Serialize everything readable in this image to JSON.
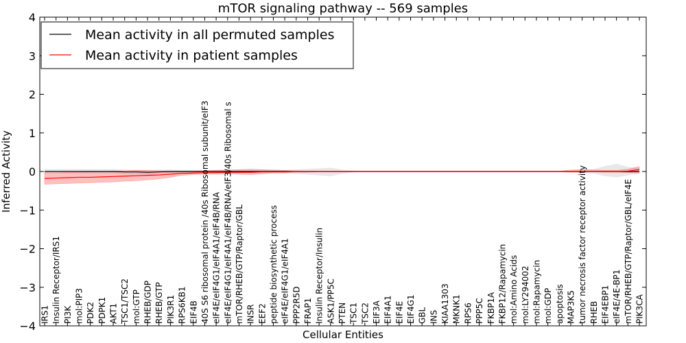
{
  "chart_data": {
    "type": "line",
    "title": "mTOR signaling pathway -- 569 samples",
    "xlabel": "Cellular Entities",
    "ylabel": "Inferred Activity",
    "ylim": [
      -4,
      4
    ],
    "yticks": [
      -4,
      -3,
      -2,
      -1,
      0,
      1,
      2,
      3,
      4
    ],
    "ytick_labels": [
      "−4",
      "−3",
      "−2",
      "−1",
      "0",
      "1",
      "2",
      "3",
      "4"
    ],
    "grid": false,
    "legend_position": "top-left",
    "categories": [
      "IRS1",
      "Insulin Receptor/IRS1",
      "PI3K",
      "mol:PIP3",
      "PDK2",
      "PDPK1",
      "AKT1",
      "TSC1/TSC2",
      "mol:GTP",
      "RHEB/GDP",
      "RHEB/GTP",
      "PIK3R1",
      "RPS6KB1",
      "EIF4B",
      "40S S6 ribosomal protein /40s Ribosomal subunit/eIF3",
      "eIF4E/eIF4G1/eIF4A1/eIF4B/RNA",
      "eIF4E/eIF4G1/eIF4A1/eIF4B/RNA/eIF3/40s Ribosomal s",
      "mTOR/RHEB/GTP/Raptor/GBL",
      "INSR",
      "EEF2",
      "peptide biosynthetic process",
      "eIF4E/eIF4G1/eIF4A1",
      "PPP2R5D",
      "FRAP1",
      "Insulin Receptor/Insulin",
      "ASK1/PP5C",
      "PTEN",
      "TSC1",
      "TSC2",
      "EIF3A",
      "EIF4A1",
      "EIF4E",
      "EIF4G1",
      "GBL",
      "INS",
      "KIAA1303",
      "MKNK1",
      "RPS6",
      "PPP5C",
      "FKBP1A",
      "FKBP12/Rapamycin",
      "mol:Amino Acids",
      "mol:LY294002",
      "mol:Rapamycin",
      "mol:GDP",
      "apoptosis",
      "MAP3K5",
      "tumor necrosis factor receptor activity",
      "RHEB",
      "EIF4EBP1",
      "eIF4E/4E-BP1",
      "mTOR/RHEB/GTP/Raptor/GBL/eIF4E",
      "PIK3CA"
    ],
    "series": [
      {
        "name": "Mean activity in all permuted samples",
        "color": "#000000",
        "band_color": "#d9d9d9",
        "values": [
          0.0,
          0.0,
          0.0,
          0.0,
          0.0,
          0.0,
          0.0,
          -0.01,
          -0.01,
          -0.02,
          -0.01,
          0.0,
          0.0,
          0.0,
          0.0,
          0.0,
          0.0,
          0.0,
          0.0,
          0.0,
          0.0,
          0.0,
          0.0,
          0.0,
          0.0,
          0.0,
          0.0,
          0.0,
          0.0,
          0.0,
          0.0,
          0.0,
          0.0,
          0.0,
          0.0,
          0.0,
          0.0,
          0.0,
          0.0,
          0.0,
          0.0,
          0.0,
          0.0,
          0.0,
          0.0,
          0.0,
          0.0,
          0.0,
          0.0,
          0.0,
          0.0,
          0.0,
          0.0
        ],
        "lower": [
          -0.05,
          -0.05,
          -0.05,
          -0.05,
          -0.05,
          -0.05,
          -0.05,
          -0.06,
          -0.06,
          -0.07,
          -0.06,
          -0.05,
          -0.04,
          -0.04,
          -0.04,
          -0.04,
          -0.04,
          -0.04,
          -0.04,
          -0.04,
          -0.04,
          -0.04,
          -0.06,
          -0.08,
          -0.1,
          -0.12,
          -0.06,
          -0.02,
          -0.01,
          -0.01,
          -0.01,
          -0.01,
          -0.01,
          -0.01,
          -0.01,
          -0.01,
          -0.01,
          -0.01,
          -0.01,
          -0.01,
          -0.01,
          -0.01,
          -0.01,
          -0.01,
          -0.01,
          -0.01,
          -0.02,
          -0.03,
          -0.06,
          -0.12,
          -0.15,
          -0.1,
          -0.06
        ],
        "upper": [
          0.06,
          0.06,
          0.06,
          0.06,
          0.06,
          0.06,
          0.06,
          0.05,
          0.05,
          0.04,
          0.05,
          0.05,
          0.04,
          0.04,
          0.04,
          0.04,
          0.04,
          0.04,
          0.04,
          0.04,
          0.04,
          0.04,
          0.05,
          0.07,
          0.08,
          0.1,
          0.05,
          0.02,
          0.01,
          0.01,
          0.01,
          0.01,
          0.01,
          0.01,
          0.01,
          0.01,
          0.01,
          0.01,
          0.01,
          0.01,
          0.01,
          0.01,
          0.01,
          0.01,
          0.01,
          0.01,
          0.02,
          0.03,
          0.06,
          0.14,
          0.2,
          0.12,
          0.08
        ]
      },
      {
        "name": "Mean activity in patient samples",
        "color": "#ff0000",
        "band_color": "#ff0000",
        "values": [
          -0.18,
          -0.17,
          -0.16,
          -0.15,
          -0.15,
          -0.14,
          -0.13,
          -0.12,
          -0.11,
          -0.1,
          -0.09,
          -0.07,
          -0.05,
          -0.04,
          -0.03,
          -0.03,
          -0.02,
          -0.02,
          -0.02,
          -0.01,
          -0.01,
          -0.01,
          0.0,
          0.0,
          0.0,
          0.0,
          0.0,
          0.0,
          0.0,
          0.0,
          0.0,
          0.0,
          0.0,
          0.0,
          0.0,
          0.0,
          0.0,
          0.0,
          0.0,
          0.0,
          0.0,
          0.0,
          0.0,
          0.0,
          0.0,
          0.0,
          0.0,
          0.0,
          0.0,
          0.0,
          0.0,
          0.01,
          0.05
        ],
        "lower": [
          -0.33,
          -0.32,
          -0.31,
          -0.3,
          -0.29,
          -0.28,
          -0.27,
          -0.25,
          -0.24,
          -0.22,
          -0.19,
          -0.15,
          -0.1,
          -0.08,
          -0.07,
          -0.07,
          -0.06,
          -0.07,
          -0.08,
          -0.06,
          -0.04,
          -0.04,
          -0.02,
          -0.02,
          -0.01,
          -0.01,
          -0.01,
          -0.01,
          -0.01,
          -0.01,
          -0.01,
          -0.01,
          -0.01,
          -0.01,
          -0.01,
          -0.01,
          -0.01,
          -0.01,
          -0.01,
          -0.01,
          -0.01,
          -0.01,
          -0.01,
          -0.01,
          -0.01,
          -0.01,
          -0.02,
          -0.02,
          -0.01,
          -0.02,
          -0.02,
          -0.03,
          -0.04
        ],
        "upper": [
          -0.03,
          -0.03,
          -0.02,
          -0.02,
          -0.01,
          0.0,
          0.01,
          0.02,
          0.03,
          0.03,
          0.02,
          0.01,
          0.01,
          0.01,
          0.02,
          0.03,
          0.04,
          0.05,
          0.06,
          0.05,
          0.04,
          0.03,
          0.02,
          0.01,
          0.01,
          0.01,
          0.01,
          0.01,
          0.01,
          0.01,
          0.01,
          0.01,
          0.01,
          0.01,
          0.01,
          0.01,
          0.01,
          0.01,
          0.01,
          0.01,
          0.01,
          0.01,
          0.01,
          0.01,
          0.01,
          0.01,
          0.04,
          0.05,
          0.04,
          0.03,
          0.03,
          0.06,
          0.13
        ]
      }
    ]
  }
}
